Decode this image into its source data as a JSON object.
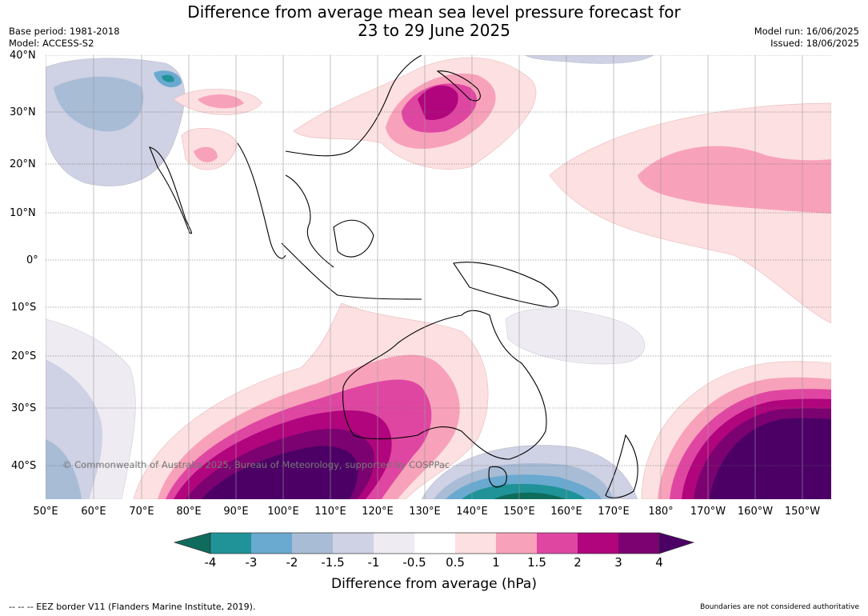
{
  "title": {
    "line1": "Difference from average mean sea level pressure forecast for",
    "line2": "23 to 29 June 2025"
  },
  "meta": {
    "base_period": "Base period: 1981-2018",
    "model": "Model: ACCESS-S2",
    "model_run": "Model run: 16/06/2025",
    "issued": "Issued: 18/06/2025"
  },
  "map": {
    "copyright": "© Commonwealth of Australia 2025, Bureau of Meteorology, supported by COSPPac",
    "lat_labels": [
      "40°N",
      "30°N",
      "20°N",
      "10°N",
      "0°",
      "10°S",
      "20°S",
      "30°S",
      "40°S"
    ],
    "lon_labels": [
      "50°E",
      "60°E",
      "70°E",
      "80°E",
      "90°E",
      "100°E",
      "110°E",
      "120°E",
      "130°E",
      "140°E",
      "150°E",
      "160°E",
      "170°E",
      "180°",
      "170°W",
      "160°W",
      "150°W"
    ]
  },
  "colorbar": {
    "label": "Difference from average (hPa)",
    "ticks": [
      "-4",
      "-3",
      "-2",
      "-1.5",
      "-1",
      "-0.5",
      "0.5",
      "1",
      "1.5",
      "2",
      "3",
      "4"
    ],
    "colors": [
      "#0f6b5c",
      "#1f9398",
      "#6aa9d0",
      "#a8bcd6",
      "#cfd1e4",
      "#efebf3",
      "#ffffff",
      "#fde0e1",
      "#f8a1ba",
      "#df46a2",
      "#b0057d",
      "#7b0270",
      "#4c0066"
    ]
  },
  "footer": {
    "legend_note": "--  --  -- EEZ border V11 (Flanders Marine Institute, 2019).",
    "boundaries_note": "Boundaries are not considered authoritative"
  }
}
